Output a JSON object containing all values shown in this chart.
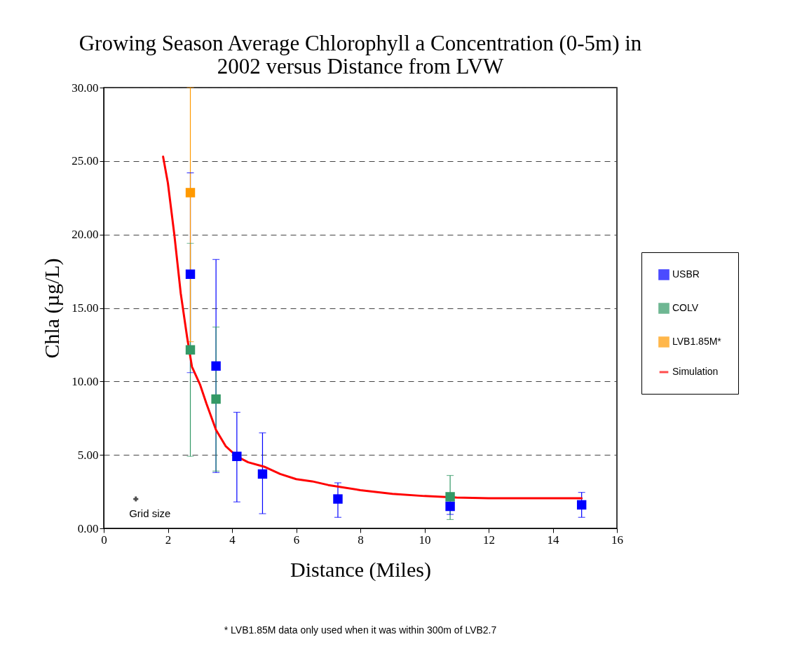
{
  "chart_data": {
    "type": "scatter",
    "title": "Growing Season Average Chlorophyll a Concentration (0-5m) in 2002 versus Distance from LVW",
    "xlabel": "Distance (Miles)",
    "ylabel": "Chla (µg/L)",
    "xlim": [
      0,
      16
    ],
    "xticks": [
      0,
      2,
      4,
      6,
      8,
      10,
      12,
      14,
      16
    ],
    "ylim": [
      0,
      30
    ],
    "yticks": [
      {
        "value": 0,
        "label": "0.00"
      },
      {
        "value": 5,
        "label": "5.00"
      },
      {
        "value": 10,
        "label": "10.00"
      },
      {
        "value": 15,
        "label": "15.00"
      },
      {
        "value": 20,
        "label": "20.00"
      },
      {
        "value": 25,
        "label": "25.00"
      },
      {
        "value": 30,
        "label": "30.00"
      }
    ],
    "grid": "y",
    "legend": "right",
    "marker": "square",
    "series": [
      {
        "name": "USBR",
        "color": "#0000ff",
        "x": [
          2.7,
          3.5,
          4.15,
          4.95,
          7.3,
          10.8,
          14.9
        ],
        "values": [
          17.3,
          11.05,
          4.9,
          3.7,
          2.0,
          1.5,
          1.6
        ],
        "errors": [
          [
            10.6,
            24.2
          ],
          [
            3.8,
            18.3
          ],
          [
            1.8,
            7.9
          ],
          [
            1.0,
            6.5
          ],
          [
            0.75,
            3.1
          ],
          [
            0.95,
            1.5
          ],
          [
            0.75,
            2.45
          ]
        ]
      },
      {
        "name": "COLV",
        "color": "#339966",
        "x": [
          2.7,
          3.5,
          10.8
        ],
        "values": [
          12.15,
          8.8,
          2.15
        ],
        "errors": [
          [
            4.9,
            19.4
          ],
          [
            3.9,
            13.7
          ],
          [
            0.6,
            3.6
          ]
        ]
      },
      {
        "name": "LVB1.85M*",
        "color": "#ff9900",
        "x": [
          2.7
        ],
        "values": [
          22.85
        ],
        "errors": [
          [
            12.7,
            30
          ]
        ]
      },
      {
        "name": "Simulation",
        "type": "line",
        "color": "#ff0000",
        "line_style": "solid",
        "marker": "none",
        "x": [
          1.85,
          2.0,
          2.2,
          2.4,
          2.6,
          2.75,
          3.0,
          3.2,
          3.5,
          3.8,
          4.15,
          4.5,
          5.0,
          5.5,
          6.0,
          6.5,
          7.0,
          8.0,
          9.0,
          10.0,
          11.0,
          12.0,
          14.9
        ],
        "values": [
          25.3,
          23.5,
          20.0,
          16.0,
          13.0,
          11.0,
          9.8,
          8.5,
          6.7,
          5.6,
          4.9,
          4.5,
          4.2,
          3.7,
          3.35,
          3.2,
          2.95,
          2.6,
          2.35,
          2.2,
          2.1,
          2.05,
          2.05
        ]
      }
    ],
    "annotations": [
      {
        "text": "Grid size",
        "x": 1,
        "y": 2
      },
      "* LVB1.85M data only used when it was within 300m of LVB2.7"
    ]
  }
}
